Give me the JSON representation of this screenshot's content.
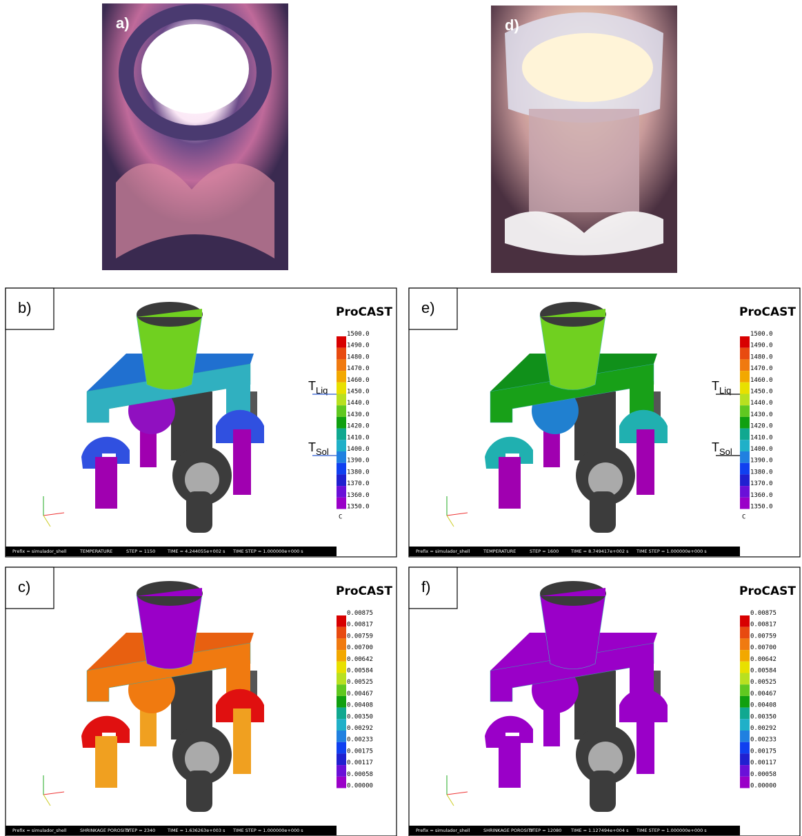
{
  "panels": [
    {
      "label": "a)"
    },
    {
      "label": "d)"
    },
    {
      "label": "b)",
      "brand": "ProCAST",
      "legend": {
        "values": [
          "1500.0",
          "1490.0",
          "1480.0",
          "1470.0",
          "1460.0",
          "1450.0",
          "1440.0",
          "1430.0",
          "1420.0",
          "1410.0",
          "1400.0",
          "1390.0",
          "1380.0",
          "1370.0",
          "1360.0",
          "1350.0"
        ],
        "unit": "C"
      },
      "markers": [
        {
          "main": "T",
          "sub": "Liq"
        },
        {
          "main": "T",
          "sub": "Sol"
        }
      ],
      "status": {
        "prefix": "Prefix = simulador_shell",
        "field": "TEMPERATURE",
        "step": "STEP = 1150",
        "time": "TIME = 4.244055e+002 s",
        "time_step": "TIME STEP = 1.000000e+000 s"
      }
    },
    {
      "label": "e)",
      "brand": "ProCAST",
      "legend": {
        "values": [
          "1500.0",
          "1490.0",
          "1480.0",
          "1470.0",
          "1460.0",
          "1450.0",
          "1440.0",
          "1430.0",
          "1420.0",
          "1410.0",
          "1400.0",
          "1390.0",
          "1380.0",
          "1370.0",
          "1360.0",
          "1350.0"
        ],
        "unit": "C"
      },
      "markers": [
        {
          "main": "T",
          "sub": "Liq"
        },
        {
          "main": "T",
          "sub": "Sol"
        }
      ],
      "status": {
        "prefix": "Prefix = simulador_shell",
        "field": "TEMPERATURE",
        "step": "STEP = 1600",
        "time": "TIME = 8.749417e+002 s",
        "time_step": "TIME STEP = 1.000000e+000 s"
      }
    },
    {
      "label": "c)",
      "brand": "ProCAST",
      "legend": {
        "values": [
          "0.00875",
          "0.00817",
          "0.00759",
          "0.00700",
          "0.00642",
          "0.00584",
          "0.00525",
          "0.00467",
          "0.00408",
          "0.00350",
          "0.00292",
          "0.00233",
          "0.00175",
          "0.00117",
          "0.00058",
          "0.00000"
        ]
      },
      "status": {
        "prefix": "Prefix = simulador_shell",
        "field": "SHRINKAGE POROSITY",
        "step": "STEP = 2340",
        "time": "TIME = 1.636263e+003 s",
        "time_step": "TIME STEP = 1.000000e+000 s"
      }
    },
    {
      "label": "f)",
      "brand": "ProCAST",
      "legend": {
        "values": [
          "0.00875",
          "0.00817",
          "0.00759",
          "0.00700",
          "0.00642",
          "0.00584",
          "0.00525",
          "0.00467",
          "0.00408",
          "0.00350",
          "0.00292",
          "0.00233",
          "0.00175",
          "0.00117",
          "0.00058",
          "0.00000"
        ]
      },
      "status": {
        "prefix": "Prefix = simulador_shell",
        "field": "SHRINKAGE POROSITY",
        "step": "STEP = 12080",
        "time": "TIME = 1.127494e+004 s",
        "time_step": "TIME STEP = 1.000000e+000 s"
      }
    }
  ]
}
